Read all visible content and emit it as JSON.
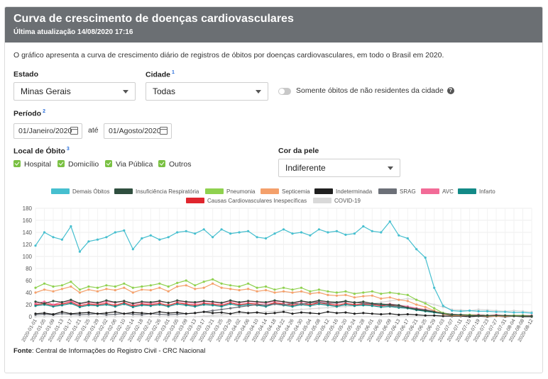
{
  "header": {
    "title": "Curva de crescimento de doenças cardiovasculares",
    "updated": "Última atualização 14/08/2020 17:16"
  },
  "description": "O gráfico apresenta a curva de crescimento diário de registros de óbitos por doenças cardiovasculares, em todo o Brasil em 2020.",
  "filters": {
    "estado_label": "Estado",
    "estado_value": "Minas Gerais",
    "cidade_label": "Cidade",
    "cidade_sup": "1",
    "cidade_value": "Todas",
    "toggle_label": "Somente óbitos de não residentes da cidade",
    "help_glyph": "?",
    "periodo_label": "Período",
    "periodo_sup": "2",
    "date_start": "01/Janeiro/2020",
    "date_connector": "até",
    "date_end": "01/Agosto/2020",
    "local_label": "Local de Óbito",
    "local_sup": "3",
    "local_options": [
      "Hospital",
      "Domicílio",
      "Via Pública",
      "Outros"
    ],
    "cor_label": "Cor da pele",
    "cor_value": "Indiferente"
  },
  "footer": {
    "fonte_label": "Fonte",
    "fonte_text": ": Central de Informações do Registro Civil - CRC Nacional"
  },
  "chart_data": {
    "type": "line",
    "title": "",
    "xlabel": "",
    "ylabel": "",
    "ylim": [
      0,
      180
    ],
    "yticks": [
      0,
      20,
      40,
      60,
      80,
      100,
      120,
      140,
      160,
      180
    ],
    "grid": true,
    "legend_position": "top",
    "x_start": "2020-01-01",
    "x_end": "2020-08-12",
    "x_tick_labels": [
      "2020-01-01",
      "2020-01-05",
      "2020-01-09",
      "2020-01-13",
      "2020-01-17",
      "2020-01-21",
      "2020-01-25",
      "2020-01-29",
      "2020-02-02",
      "2020-02-06",
      "2020-02-10",
      "2020-02-14",
      "2020-02-18",
      "2020-02-22",
      "2020-02-26",
      "2020-03-01",
      "2020-03-05",
      "2020-03-09",
      "2020-03-13",
      "2020-03-17",
      "2020-03-21",
      "2020-03-25",
      "2020-03-29",
      "2020-04-02",
      "2020-04-06",
      "2020-04-10",
      "2020-04-14",
      "2020-04-18",
      "2020-04-22",
      "2020-04-26",
      "2020-04-30",
      "2020-05-04",
      "2020-05-08",
      "2020-05-12",
      "2020-05-16",
      "2020-05-20",
      "2020-05-24",
      "2020-05-28",
      "2020-06-01",
      "2020-06-05",
      "2020-06-09",
      "2020-06-13",
      "2020-06-17",
      "2020-06-21",
      "2020-06-25",
      "2020-06-29",
      "2020-07-03",
      "2020-07-07",
      "2020-07-11",
      "2020-07-15",
      "2020-07-19",
      "2020-07-23",
      "2020-07-27",
      "2020-07-31",
      "2020-08-04",
      "2020-08-08",
      "2020-08-12"
    ],
    "series": [
      {
        "name": "Demais Óbitos",
        "color": "#46bfcf",
        "x_step_days": 4,
        "values": [
          118,
          140,
          132,
          128,
          150,
          108,
          125,
          128,
          132,
          140,
          143,
          112,
          130,
          135,
          128,
          132,
          140,
          142,
          138,
          145,
          132,
          145,
          138,
          140,
          142,
          132,
          130,
          138,
          145,
          138,
          140,
          135,
          145,
          140,
          142,
          136,
          138,
          150,
          142,
          140,
          158,
          135,
          130,
          112,
          98,
          48,
          18,
          10,
          9,
          10,
          9,
          9,
          8,
          8,
          7,
          7,
          6
        ]
      },
      {
        "name": "Insuficiência Respiratória",
        "color": "#2f4f3f",
        "x_step_days": 4,
        "values": [
          25,
          22,
          26,
          24,
          28,
          22,
          25,
          23,
          27,
          24,
          26,
          22,
          25,
          24,
          26,
          23,
          27,
          25,
          24,
          26,
          25,
          23,
          27,
          24,
          26,
          25,
          24,
          27,
          25,
          23,
          26,
          24,
          27,
          25,
          24,
          26,
          23,
          25,
          22,
          21,
          20,
          19,
          15,
          12,
          10,
          8,
          5,
          3,
          3,
          2,
          2,
          2,
          2,
          2,
          1,
          1,
          1
        ]
      },
      {
        "name": "Pneumonia",
        "color": "#8fd14f",
        "x_step_days": 4,
        "values": [
          48,
          55,
          50,
          52,
          58,
          45,
          50,
          48,
          52,
          50,
          55,
          48,
          50,
          52,
          55,
          50,
          56,
          60,
          52,
          58,
          62,
          55,
          52,
          50,
          55,
          48,
          50,
          45,
          48,
          45,
          48,
          42,
          45,
          42,
          40,
          42,
          38,
          40,
          42,
          38,
          40,
          38,
          36,
          28,
          22,
          14,
          6,
          3,
          3,
          3,
          2,
          2,
          2,
          2,
          2,
          2,
          1
        ]
      },
      {
        "name": "Septicemia",
        "color": "#f4a06b",
        "x_step_days": 4,
        "values": [
          40,
          45,
          42,
          46,
          50,
          40,
          45,
          42,
          46,
          44,
          48,
          40,
          45,
          44,
          48,
          42,
          50,
          52,
          46,
          48,
          55,
          48,
          46,
          44,
          46,
          42,
          44,
          40,
          42,
          40,
          42,
          38,
          40,
          36,
          35,
          36,
          32,
          34,
          35,
          30,
          32,
          28,
          26,
          20,
          16,
          10,
          4,
          2,
          2,
          2,
          2,
          1,
          1,
          1,
          1,
          1,
          1
        ]
      },
      {
        "name": "Indeterminada",
        "color": "#1f1f1f",
        "x_step_days": 4,
        "values": [
          5,
          6,
          4,
          8,
          5,
          6,
          7,
          5,
          6,
          8,
          5,
          7,
          6,
          5,
          8,
          6,
          7,
          5,
          6,
          8,
          6,
          7,
          5,
          8,
          6,
          7,
          5,
          6,
          8,
          5,
          7,
          6,
          5,
          8,
          6,
          7,
          5,
          6,
          5,
          4,
          5,
          3,
          4,
          3,
          2,
          2,
          1,
          1,
          1,
          0,
          1,
          0,
          1,
          0,
          1,
          0,
          0
        ]
      },
      {
        "name": "SRAG",
        "color": "#6c7078",
        "x_step_days": 4,
        "values": [
          3,
          4,
          3,
          5,
          4,
          3,
          4,
          5,
          3,
          4,
          5,
          4,
          3,
          5,
          4,
          3,
          4,
          5,
          6,
          8,
          10,
          12,
          14,
          16,
          18,
          20,
          19,
          21,
          20,
          22,
          21,
          23,
          24,
          22,
          23,
          25,
          24,
          22,
          21,
          20,
          18,
          17,
          15,
          13,
          11,
          9,
          6,
          4,
          3,
          2,
          2,
          2,
          1,
          1,
          1,
          1,
          1
        ]
      },
      {
        "name": "AVC",
        "color": "#f26b97",
        "x_step_days": 4,
        "values": [
          22,
          25,
          20,
          24,
          26,
          21,
          24,
          22,
          25,
          23,
          26,
          21,
          24,
          22,
          25,
          23,
          26,
          24,
          22,
          25,
          24,
          22,
          26,
          23,
          25,
          24,
          22,
          26,
          24,
          22,
          25,
          23,
          26,
          24,
          22,
          25,
          23,
          24,
          22,
          20,
          21,
          19,
          17,
          14,
          12,
          9,
          6,
          4,
          3,
          3,
          3,
          2,
          3,
          2,
          2,
          2,
          2
        ]
      },
      {
        "name": "Infarto",
        "color": "#138a87",
        "x_step_days": 4,
        "values": [
          18,
          20,
          17,
          19,
          22,
          16,
          19,
          18,
          20,
          17,
          21,
          16,
          19,
          18,
          20,
          17,
          21,
          19,
          17,
          20,
          19,
          17,
          21,
          18,
          20,
          19,
          17,
          21,
          19,
          17,
          20,
          18,
          21,
          19,
          17,
          20,
          18,
          19,
          18,
          16,
          17,
          15,
          14,
          11,
          9,
          7,
          5,
          3,
          3,
          2,
          3,
          2,
          2,
          2,
          2,
          2,
          1
        ]
      },
      {
        "name": "Causas Cardiovasculares Inespecíficas",
        "color": "#e0262e",
        "x_step_days": 4,
        "values": [
          20,
          22,
          19,
          21,
          24,
          18,
          21,
          20,
          22,
          19,
          23,
          18,
          21,
          20,
          22,
          19,
          23,
          21,
          19,
          22,
          21,
          19,
          23,
          20,
          22,
          21,
          19,
          23,
          21,
          19,
          22,
          20,
          23,
          21,
          19,
          22,
          20,
          21,
          20,
          18,
          19,
          17,
          15,
          12,
          10,
          8,
          5,
          3,
          3,
          2,
          3,
          2,
          2,
          2,
          2,
          2,
          1
        ]
      },
      {
        "name": "COVID-19",
        "color": "#d9d9d9",
        "x_step_days": 4,
        "values": [
          0,
          0,
          0,
          0,
          0,
          0,
          0,
          0,
          0,
          0,
          0,
          0,
          0,
          0,
          0,
          0,
          0,
          0,
          0,
          1,
          2,
          3,
          4,
          5,
          6,
          7,
          8,
          9,
          10,
          11,
          12,
          13,
          14,
          15,
          16,
          17,
          18,
          20,
          22,
          24,
          26,
          28,
          30,
          28,
          24,
          20,
          16,
          12,
          11,
          10,
          12,
          11,
          10,
          9,
          10,
          9,
          8
        ]
      }
    ]
  }
}
